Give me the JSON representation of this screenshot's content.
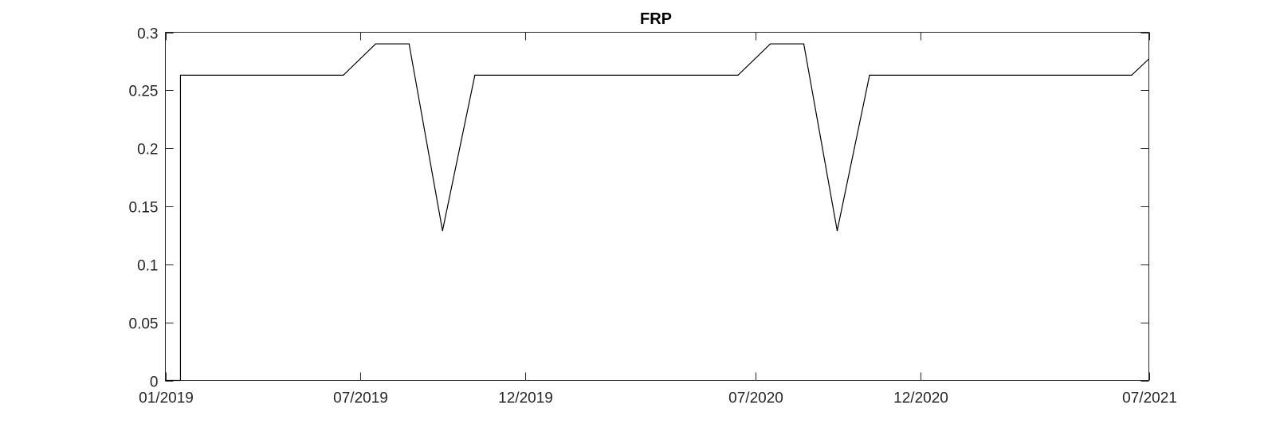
{
  "chart_data": {
    "type": "line",
    "title": "FRP",
    "xlabel": "",
    "ylabel": "",
    "x_ticks": [
      {
        "date": "2019-01-01",
        "label": "01/2019"
      },
      {
        "date": "2019-07-01",
        "label": "07/2019"
      },
      {
        "date": "2019-12-01",
        "label": "12/2019"
      },
      {
        "date": "2020-07-01",
        "label": "07/2020"
      },
      {
        "date": "2020-12-01",
        "label": "12/2020"
      },
      {
        "date": "2021-07-01",
        "label": "07/2021"
      }
    ],
    "xlim": [
      "2019-01-01",
      "2021-07-01"
    ],
    "y_ticks": [
      {
        "value": 0,
        "label": "0"
      },
      {
        "value": 0.05,
        "label": "0.05"
      },
      {
        "value": 0.1,
        "label": "0.1"
      },
      {
        "value": 0.15,
        "label": "0.15"
      },
      {
        "value": 0.2,
        "label": "0.2"
      },
      {
        "value": 0.25,
        "label": "0.25"
      },
      {
        "value": 0.3,
        "label": "0.3"
      }
    ],
    "ylim": [
      0,
      0.3
    ],
    "grid": false,
    "line_color": "#000000",
    "series": [
      {
        "x": [
          "2019-01-01",
          "2019-01-15",
          "2019-01-15",
          "2019-06-15",
          "2019-07-15",
          "2019-08-15",
          "2019-09-15",
          "2019-10-15",
          "2020-06-15",
          "2020-07-15",
          "2020-08-15",
          "2020-09-15",
          "2020-10-15",
          "2021-06-15",
          "2021-07-01"
        ],
        "y": [
          0,
          0,
          0.263,
          0.263,
          0.29,
          0.29,
          0.129,
          0.263,
          0.263,
          0.29,
          0.29,
          0.129,
          0.263,
          0.263,
          0.277
        ]
      }
    ]
  }
}
